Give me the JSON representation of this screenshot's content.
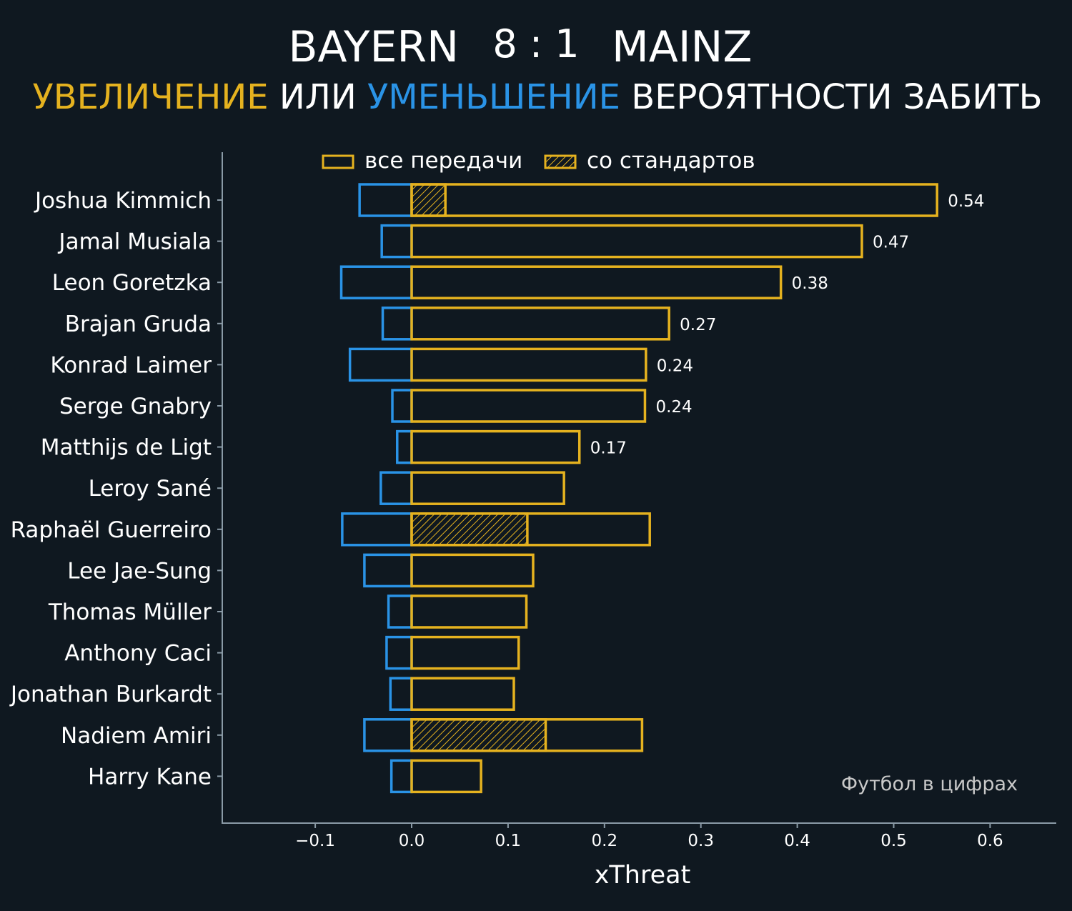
{
  "header": {
    "home_team": "BAYERN",
    "score": "8 : 1",
    "away_team": "MAINZ"
  },
  "subtitle": {
    "increase": "УВЕЛИЧЕНИЕ",
    "or": "ИЛИ",
    "decrease": "УМЕНЬШЕНИЕ",
    "rest": "ВЕРОЯТНОСТИ ЗАБИТЬ"
  },
  "legend": {
    "all_passes": "все передачи",
    "set_pieces": "со стандартов"
  },
  "watermark": "Футбол в цифрах",
  "colors": {
    "background": "#0f1820",
    "positive": "#e5b21f",
    "negative": "#2a93e6",
    "axis": "#8a9aa6"
  },
  "chart_data": {
    "type": "bar",
    "orientation": "horizontal",
    "xlabel": "xThreat",
    "xlim": [
      -0.19,
      0.68
    ],
    "xticks": [
      -0.1,
      0.0,
      0.1,
      0.2,
      0.3,
      0.4,
      0.5,
      0.6
    ],
    "xtick_labels": [
      "−0.1",
      "0.0",
      "0.1",
      "0.2",
      "0.3",
      "0.4",
      "0.5",
      "0.6"
    ],
    "legend_position": "top-center",
    "players": [
      {
        "name": "Joshua Kimmich",
        "positive": 0.545,
        "negative": -0.054,
        "set_piece": 0.035,
        "label": "0.54"
      },
      {
        "name": "Jamal Musiala",
        "positive": 0.467,
        "negative": -0.031,
        "set_piece": 0,
        "label": "0.47"
      },
      {
        "name": "Leon Goretzka",
        "positive": 0.383,
        "negative": -0.073,
        "set_piece": 0,
        "label": "0.38"
      },
      {
        "name": "Brajan Gruda",
        "positive": 0.267,
        "negative": -0.03,
        "set_piece": 0,
        "label": "0.27"
      },
      {
        "name": "Konrad Laimer",
        "positive": 0.243,
        "negative": -0.064,
        "set_piece": 0,
        "label": "0.24"
      },
      {
        "name": "Serge Gnabry",
        "positive": 0.242,
        "negative": -0.02,
        "set_piece": 0,
        "label": "0.24"
      },
      {
        "name": "Matthijs de Ligt",
        "positive": 0.174,
        "negative": -0.015,
        "set_piece": 0,
        "label": "0.17"
      },
      {
        "name": "Leroy Sané",
        "positive": 0.158,
        "negative": -0.032,
        "set_piece": 0,
        "label": ""
      },
      {
        "name": "Raphaël Guerreiro",
        "positive": 0.247,
        "negative": -0.072,
        "set_piece": 0.12,
        "label": ""
      },
      {
        "name": "Lee Jae-Sung",
        "positive": 0.126,
        "negative": -0.049,
        "set_piece": 0,
        "label": ""
      },
      {
        "name": "Thomas Müller",
        "positive": 0.119,
        "negative": -0.024,
        "set_piece": 0,
        "label": ""
      },
      {
        "name": "Anthony Caci",
        "positive": 0.111,
        "negative": -0.026,
        "set_piece": 0,
        "label": ""
      },
      {
        "name": "Jonathan Burkardt",
        "positive": 0.106,
        "negative": -0.022,
        "set_piece": 0,
        "label": ""
      },
      {
        "name": "Nadiem Amiri",
        "positive": 0.239,
        "negative": -0.049,
        "set_piece": 0.139,
        "label": ""
      },
      {
        "name": "Harry Kane",
        "positive": 0.072,
        "negative": -0.021,
        "set_piece": 0,
        "label": ""
      }
    ]
  }
}
